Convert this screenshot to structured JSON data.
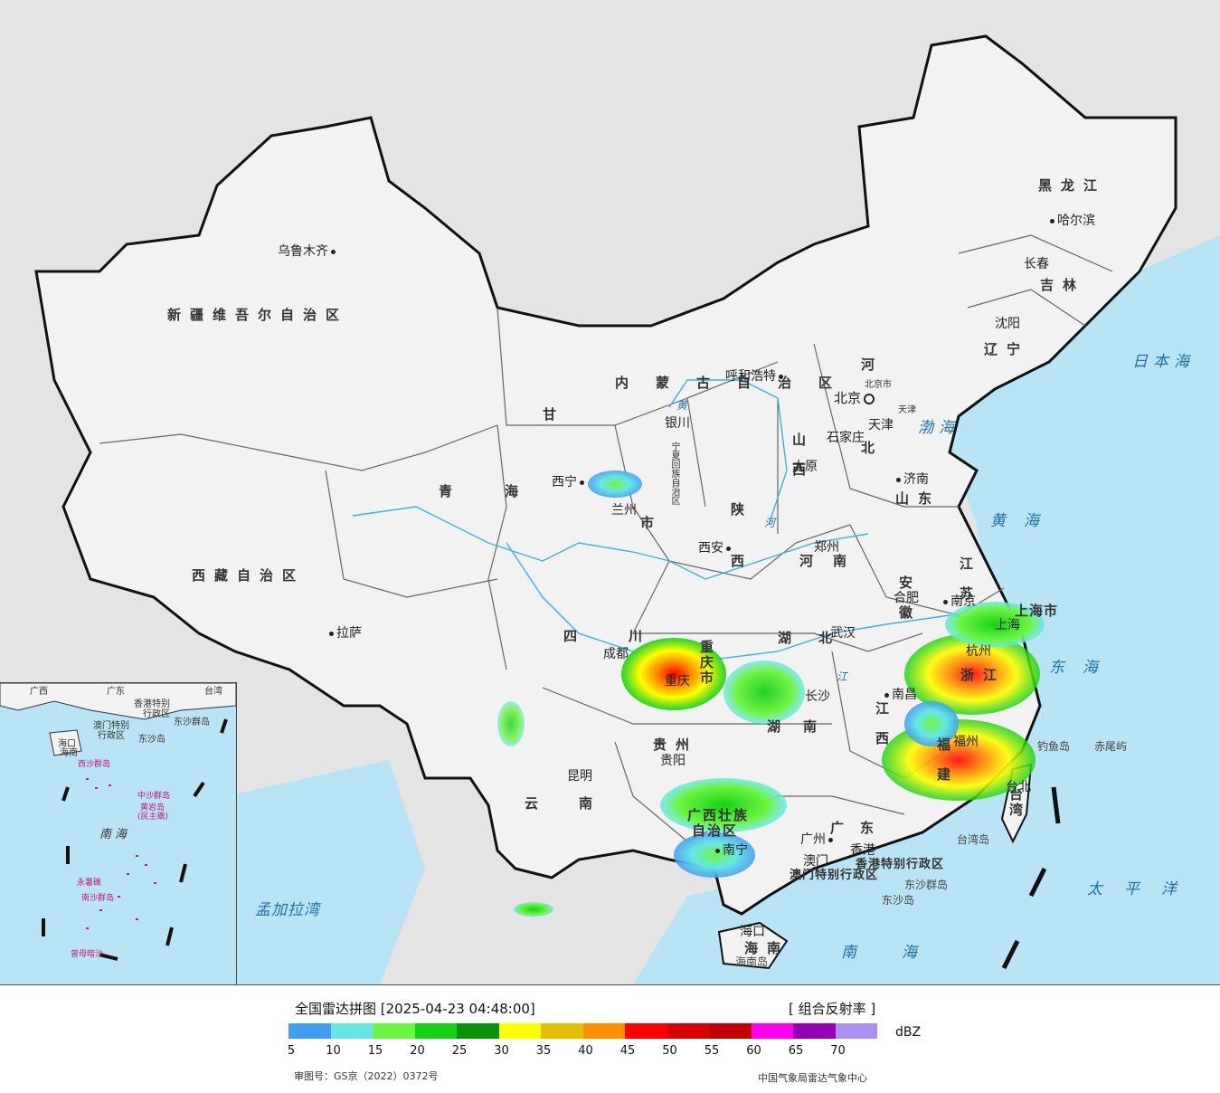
{
  "legend": {
    "title": "全国雷达拼图 [2025-04-23 04:48:00]",
    "product": "[ 组合反射率 ]",
    "unit": "dBZ",
    "approval": "审图号：GS京（2022）0372号",
    "org": "中国气象局雷达气象中心",
    "colors": [
      "#3f9ef0",
      "#66e6e6",
      "#6cf542",
      "#16d116",
      "#0b910b",
      "#ffff00",
      "#e6c000",
      "#ff9000",
      "#ff0000",
      "#d60000",
      "#c00000",
      "#ff00f0",
      "#9400b4",
      "#ac90f0"
    ],
    "ticks": [
      "5",
      "10",
      "15",
      "20",
      "25",
      "30",
      "35",
      "40",
      "45",
      "50",
      "55",
      "60",
      "65",
      "70"
    ]
  },
  "map": {
    "regions": {
      "xinjiang": "新疆维吾尔自治区",
      "xizang": "西藏自治区",
      "qinghai_1": "青",
      "qinghai_2": "海",
      "gansu": "甘",
      "sichuan_1": "四",
      "sichuan_2": "川",
      "yunnan_1": "云",
      "yunnan_2": "南",
      "neimenggu": "内蒙古自治区",
      "heilongjiang": "黑龙江",
      "jilin": "吉林",
      "liaoning": "辽宁",
      "hebei_1": "河",
      "hebei_2": "北",
      "shanxi": "山西",
      "shaanxi_1": "陕",
      "shaanxi_2": "西",
      "henan": "河南",
      "shandong": "山东",
      "jiangsu": "江苏",
      "anhui": "安徽",
      "hubei_1": "湖",
      "hubei_2": "北",
      "hunan_1": "湖",
      "hunan_2": "南",
      "jiangxi": "江西",
      "zhejiang": "浙江",
      "fujian": "福建",
      "guizhou": "贵州",
      "guangxi_1": "广西壮族",
      "guangxi_2": "自治区",
      "guangdong": "广东",
      "hainan": "海南",
      "chongqing": "重庆市",
      "shanghai": "上海市",
      "taiwan": "台湾",
      "ningxia": "宁夏回族自治区",
      "gansu_2": "市",
      "hk": "香港特别行政区",
      "macau": "澳门特别行政区"
    },
    "cities": {
      "urumqi": "乌鲁木齐",
      "lhasa": "拉萨",
      "xining": "西宁",
      "lanzhou": "兰州",
      "yinchuan": "银川",
      "hohhot": "呼和浩特",
      "beijing": "北京",
      "beijing_small": "北京市",
      "tianjin": "天津",
      "tianjin_small": "天津",
      "shijiazhuang": "石家庄",
      "taiyuan": "太原",
      "jinan": "济南",
      "zhengzhou": "郑州",
      "xian": "西安",
      "chengdu": "成都",
      "chongqing": "重庆",
      "wuhan": "武汉",
      "hefei": "合肥",
      "nanjing": "南京",
      "shanghai": "上海",
      "hangzhou": "杭州",
      "nanchang": "南昌",
      "changsha": "长沙",
      "fuzhou": "福州",
      "taipei": "台北",
      "guiyang": "贵阳",
      "kunming": "昆明",
      "nanning": "南宁",
      "guangzhou": "广州",
      "hongkong": "香港",
      "macau": "澳门",
      "haikou": "海口",
      "shenyang": "沈阳",
      "changchun": "长春",
      "harbin": "哈尔滨"
    },
    "seas": {
      "japan": "日本海",
      "bohai": "渤海",
      "yellow": "黄海",
      "east": "东海",
      "south": "南海",
      "pacific": "太平洋",
      "bengal": "孟加拉湾"
    },
    "islands": {
      "diaoyu": "钓鱼岛",
      "chiwei": "赤尾屿",
      "taiwan_island": "台湾岛",
      "dongsha": "东沙群岛",
      "dongsha_2": "东沙岛",
      "hainan_island": "海南岛",
      "rivers_yellow": "黄",
      "rivers_he": "河",
      "rivers_jiang": "江"
    },
    "inset": {
      "south_sea": "南海",
      "hainan": "海南",
      "haikou": "海口",
      "guangdong": "广东",
      "guangxi": "广西",
      "taiwan": "台湾",
      "hk": "香港特别",
      "hk_2": "行政区",
      "macau": "澳门特别",
      "macau_2": "行政区",
      "dongsha": "东沙群岛",
      "dongsha_island": "东沙岛",
      "zhongsha": "中沙群岛",
      "huangyan": "黄岩岛",
      "huangyan_2": "(民主礁)",
      "xisha": "西沙群岛",
      "yongshu": "永暑礁",
      "nansha": "南沙群岛",
      "zengmu": "曾母暗沙"
    }
  }
}
